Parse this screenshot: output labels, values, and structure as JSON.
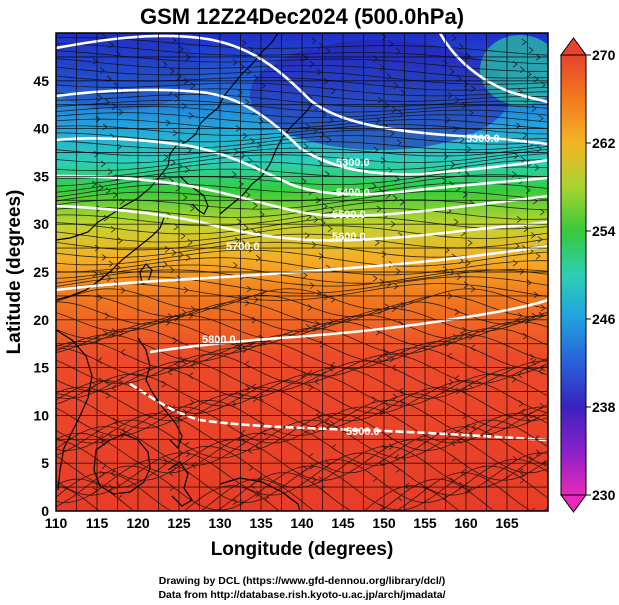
{
  "title": "GSM 12Z24Dec2024 (500.0hPa)",
  "x_axis": {
    "label": "Longitude (degrees)",
    "ticks": [
      "110",
      "115",
      "120",
      "125",
      "130",
      "135",
      "140",
      "145",
      "150",
      "155",
      "160",
      "165"
    ]
  },
  "y_axis": {
    "label": "Latitude  (degrees)",
    "ticks": [
      "0",
      "5",
      "10",
      "15",
      "20",
      "25",
      "30",
      "35",
      "40",
      "45"
    ]
  },
  "colorbar": {
    "labels": [
      "270",
      "262",
      "254",
      "246",
      "238",
      "230"
    ],
    "palette_top_to_bottom": [
      "#e8432c",
      "#f27a1e",
      "#f5b426",
      "#a8d430",
      "#38c93a",
      "#2ccfb4",
      "#22a0e0",
      "#2860d8",
      "#3a22c0",
      "#8a20c8",
      "#e82ab8"
    ]
  },
  "contours": [
    {
      "label": "5300.0"
    },
    {
      "label": "5300.0"
    },
    {
      "label": "5400.0"
    },
    {
      "label": "5500.0"
    },
    {
      "label": "5600.0"
    },
    {
      "label": "5700.0"
    },
    {
      "label": "5800.0"
    },
    {
      "label": "5900.0"
    }
  ],
  "credits": {
    "line1": "Drawing by DCL (https://www.gfd-dennou.org/library/dcl/)",
    "line2": "Data from http://database.rish.kyoto-u.ac.jp/arch/jmadata/"
  }
}
